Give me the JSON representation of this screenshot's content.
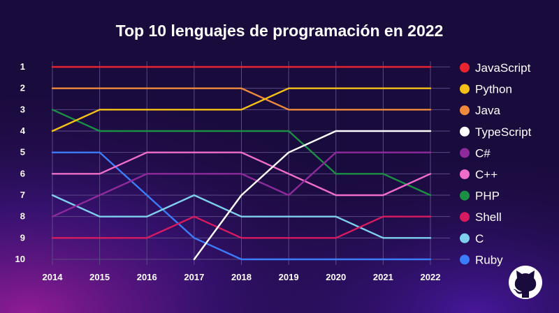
{
  "chart_data": {
    "type": "line",
    "title": "Top 10 lenguajes de programación en 2022",
    "xlabel": "",
    "ylabel": "",
    "x": [
      "2014",
      "2015",
      "2016",
      "2017",
      "2018",
      "2019",
      "2020",
      "2021",
      "2022"
    ],
    "y_ticks": [
      "1",
      "2",
      "3",
      "4",
      "5",
      "6",
      "7",
      "8",
      "9",
      "10"
    ],
    "ylim": [
      1,
      10
    ],
    "y_inverted": true,
    "grid": true,
    "legend_position": "right",
    "series": [
      {
        "name": "JavaScript",
        "color": "#e8242f",
        "values": [
          1,
          1,
          1,
          1,
          1,
          1,
          1,
          1,
          1
        ]
      },
      {
        "name": "Python",
        "color": "#f5c117",
        "values": [
          4,
          3,
          3,
          3,
          3,
          2,
          2,
          2,
          2
        ]
      },
      {
        "name": "Java",
        "color": "#ef8a3c",
        "values": [
          2,
          2,
          2,
          2,
          2,
          3,
          3,
          3,
          3
        ]
      },
      {
        "name": "TypeScript",
        "color": "#ffffff",
        "values": [
          null,
          null,
          null,
          10,
          7,
          5,
          4,
          4,
          4
        ]
      },
      {
        "name": "C#",
        "color": "#8e2a9c",
        "values": [
          8,
          7,
          6,
          6,
          6,
          7,
          5,
          5,
          5
        ]
      },
      {
        "name": "C++",
        "color": "#f06ec9",
        "values": [
          6,
          6,
          5,
          5,
          5,
          6,
          7,
          7,
          6
        ]
      },
      {
        "name": "PHP",
        "color": "#1b8f44",
        "values": [
          3,
          4,
          4,
          4,
          4,
          4,
          6,
          6,
          7
        ]
      },
      {
        "name": "Shell",
        "color": "#d81b60",
        "values": [
          9,
          9,
          9,
          8,
          9,
          9,
          9,
          8,
          8
        ]
      },
      {
        "name": "C",
        "color": "#7fd0ee",
        "values": [
          7,
          8,
          8,
          7,
          8,
          8,
          8,
          9,
          9
        ]
      },
      {
        "name": "Ruby",
        "color": "#3b7dfa",
        "values": [
          5,
          5,
          7,
          9,
          10,
          10,
          10,
          10,
          10
        ]
      }
    ]
  },
  "logo": {
    "icon": "github-octocat-icon"
  }
}
